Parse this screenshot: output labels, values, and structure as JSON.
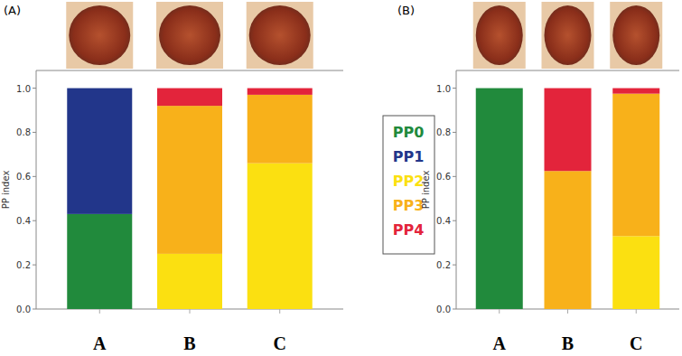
{
  "chart_data": [
    {
      "type": "bar",
      "title": "(A)",
      "y_label": "PP index",
      "stacked": true,
      "legend": "right",
      "categories": [
        "A",
        "B",
        "C"
      ],
      "series": [
        {
          "name": "PP0",
          "color": "#218a3c",
          "values": [
            0.43,
            0,
            0
          ]
        },
        {
          "name": "PP1",
          "color": "#22368a",
          "values": [
            0.57,
            0,
            0
          ]
        },
        {
          "name": "PP2",
          "color": "#fbe011",
          "values": [
            0,
            0.25,
            0.66
          ]
        },
        {
          "name": "PP3",
          "color": "#f8b11a",
          "values": [
            0,
            0.67,
            0.31
          ]
        },
        {
          "name": "PP4",
          "color": "#e3243b",
          "values": [
            0,
            0.08,
            0.03
          ]
        }
      ],
      "ylim": [
        0,
        1.08
      ],
      "yticks": [
        {
          "value": 0,
          "label": "0.0"
        },
        0.2,
        0.4,
        0.6,
        0.8,
        {
          "value": 1,
          "label": "1.0"
        }
      ]
    },
    {
      "type": "bar",
      "title": "(B)",
      "y_label": "PP index",
      "stacked": true,
      "categories": [
        "A",
        "B",
        "C"
      ],
      "series": [
        {
          "name": "PP0",
          "color": "#218a3c",
          "values": [
            1.0,
            0,
            0
          ]
        },
        {
          "name": "PP1",
          "color": "#22368a",
          "values": [
            0,
            0,
            0
          ]
        },
        {
          "name": "PP2",
          "color": "#fbe011",
          "values": [
            0,
            0,
            0.33
          ]
        },
        {
          "name": "PP3",
          "color": "#f8b11a",
          "values": [
            0,
            0.625,
            0.645
          ]
        },
        {
          "name": "PP4",
          "color": "#e3243b",
          "values": [
            0,
            0.375,
            0.025
          ]
        }
      ],
      "ylim": [
        0,
        1.08
      ],
      "yticks": [
        {
          "value": 0,
          "label": "0.0"
        },
        0.2,
        0.4,
        0.6,
        0.8,
        {
          "value": 1,
          "label": "1.0"
        }
      ]
    }
  ]
}
